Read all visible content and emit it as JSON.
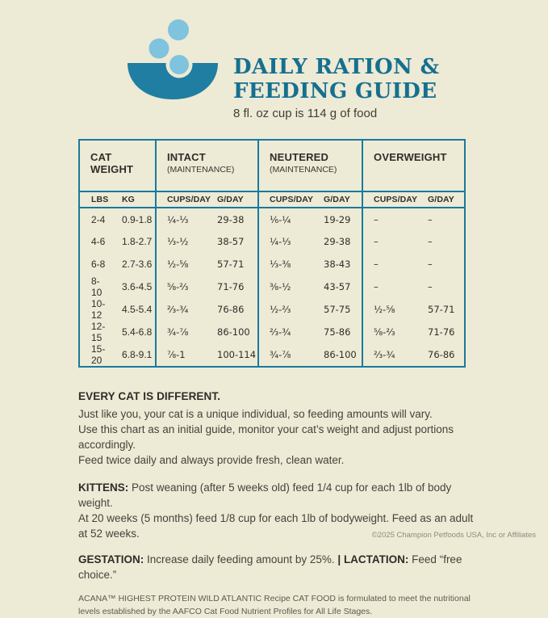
{
  "colors": {
    "background": "#edead6",
    "bowl_teal": "#1f7ea1",
    "bubble_blue": "#7fc3de",
    "title_teal": "#15708f",
    "table_border_teal": "#1a7a9e"
  },
  "header": {
    "title_line1": "DAILY RATION &",
    "title_line2": "FEEDING GUIDE",
    "subtitle": "8 fl. oz cup is 114 g of food"
  },
  "table": {
    "groups": [
      {
        "label": "CAT WEIGHT",
        "sublabel": ""
      },
      {
        "label": "INTACT",
        "sublabel": "(MAINTENANCE)"
      },
      {
        "label": "NEUTERED",
        "sublabel": "(MAINTENANCE)"
      },
      {
        "label": "OVERWEIGHT",
        "sublabel": ""
      }
    ],
    "subheaders": [
      "LBS",
      "KG",
      "CUPS/DAY",
      "G/DAY",
      "CUPS/DAY",
      "G/DAY",
      "CUPS/DAY",
      "G/DAY"
    ],
    "rows": [
      [
        "2-4",
        "0.9-1.8",
        "¼-⅓",
        "29-38",
        "⅙-¼",
        "19-29",
        "–",
        "–"
      ],
      [
        "4-6",
        "1.8-2.7",
        "⅓-½",
        "38-57",
        "¼-⅓",
        "29-38",
        "–",
        "–"
      ],
      [
        "6-8",
        "2.7-3.6",
        "½-⅝",
        "57-71",
        "⅓-⅜",
        "38-43",
        "–",
        "–"
      ],
      [
        "8-10",
        "3.6-4.5",
        "⅝-⅔",
        "71-76",
        "⅜-½",
        "43-57",
        "–",
        "–"
      ],
      [
        "10-12",
        "4.5-5.4",
        "⅔-¾",
        "76-86",
        "½-⅔",
        "57-75",
        "½-⅝",
        "57-71"
      ],
      [
        "12-15",
        "5.4-6.8",
        "¾-⅞",
        "86-100",
        "⅔-¾",
        "75-86",
        "⅝-⅔",
        "71-76"
      ],
      [
        "15-20",
        "6.8-9.1",
        "⅞-1",
        "100-114",
        "¾-⅞",
        "86-100",
        "⅔-¾",
        "76-86"
      ]
    ]
  },
  "notes": {
    "heading": "EVERY CAT IS DIFFERENT.",
    "line1": "Just like you, your cat is a unique individual, so feeding amounts will vary.",
    "line2": "Use this chart as an initial guide, monitor your cat’s weight and adjust portions accordingly.",
    "line3": "Feed twice daily and always provide fresh, clean water.",
    "kittens_label": "KITTENS:",
    "kittens_text1": " Post weaning (after 5 weeks old) feed 1/4 cup for each 1lb of body weight.",
    "kittens_text2": "At 20 weeks (5 months) feed 1/8 cup for each 1lb of bodyweight. Feed as an adult at 52 weeks.",
    "gestation_label": "GESTATION:",
    "gestation_text": " Increase daily feeding amount by 25%. ",
    "divider": "|",
    "lactation_label": " LACTATION:",
    "lactation_text": " Feed “free choice.”"
  },
  "footer": {
    "disclaimer": "ACANA™ HIGHEST PROTEIN WILD ATLANTIC Recipe CAT FOOD is formulated to meet the nutritional levels established by the AAFCO Cat Food Nutrient Profiles for All Life Stages.",
    "copyright": "©2025 Champion Petfoods USA, Inc or Affiliates"
  }
}
